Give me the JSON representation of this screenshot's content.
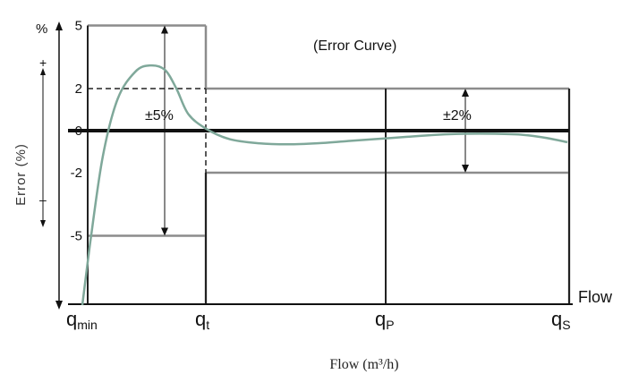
{
  "chart_data": {
    "type": "line",
    "title": "(Error Curve)",
    "xlabel": "Flow (m³/h)",
    "flow_label": "Flow",
    "ylabel": "Error (%)",
    "percent_label": "%",
    "plus_label": "+",
    "minus_label": "–",
    "yticks": [
      "5",
      "2",
      "0",
      "-2",
      "-5"
    ],
    "ylim": [
      -9,
      5
    ],
    "x_points": [
      {
        "key": "qmin",
        "main": "q",
        "sub": "min"
      },
      {
        "key": "qt",
        "main": "q",
        "sub": "t"
      },
      {
        "key": "qp",
        "main": "q",
        "sub": "P"
      },
      {
        "key": "qs",
        "main": "q",
        "sub": "S"
      }
    ],
    "tolerance_bands": [
      {
        "label": "±5%",
        "from": "qmin",
        "to": "qt",
        "upper": 5,
        "lower": -5
      },
      {
        "label": "±2%",
        "from": "qt",
        "to": "qs",
        "upper": 2,
        "lower": -2
      }
    ],
    "reference_line": 0,
    "series": [
      {
        "color": "#7fa89a",
        "points": [
          [
            0.0,
            -8.3
          ],
          [
            0.03,
            -5.0
          ],
          [
            0.07,
            -1.2
          ],
          [
            0.12,
            1.5
          ],
          [
            0.18,
            2.8
          ],
          [
            0.23,
            3.1
          ],
          [
            0.28,
            2.9
          ],
          [
            0.32,
            2.0
          ],
          [
            0.36,
            0.8
          ],
          [
            0.42,
            0.1
          ],
          [
            0.5,
            -0.4
          ],
          [
            0.6,
            -0.6
          ],
          [
            0.7,
            -0.65
          ],
          [
            0.8,
            -0.6
          ],
          [
            0.9,
            -0.5
          ],
          [
            1.0,
            -0.4
          ],
          [
            1.1,
            -0.3
          ],
          [
            1.2,
            -0.2
          ],
          [
            1.3,
            -0.15
          ],
          [
            1.4,
            -0.15
          ],
          [
            1.5,
            -0.2
          ],
          [
            1.58,
            -0.35
          ],
          [
            1.65,
            -0.55
          ]
        ]
      }
    ]
  }
}
